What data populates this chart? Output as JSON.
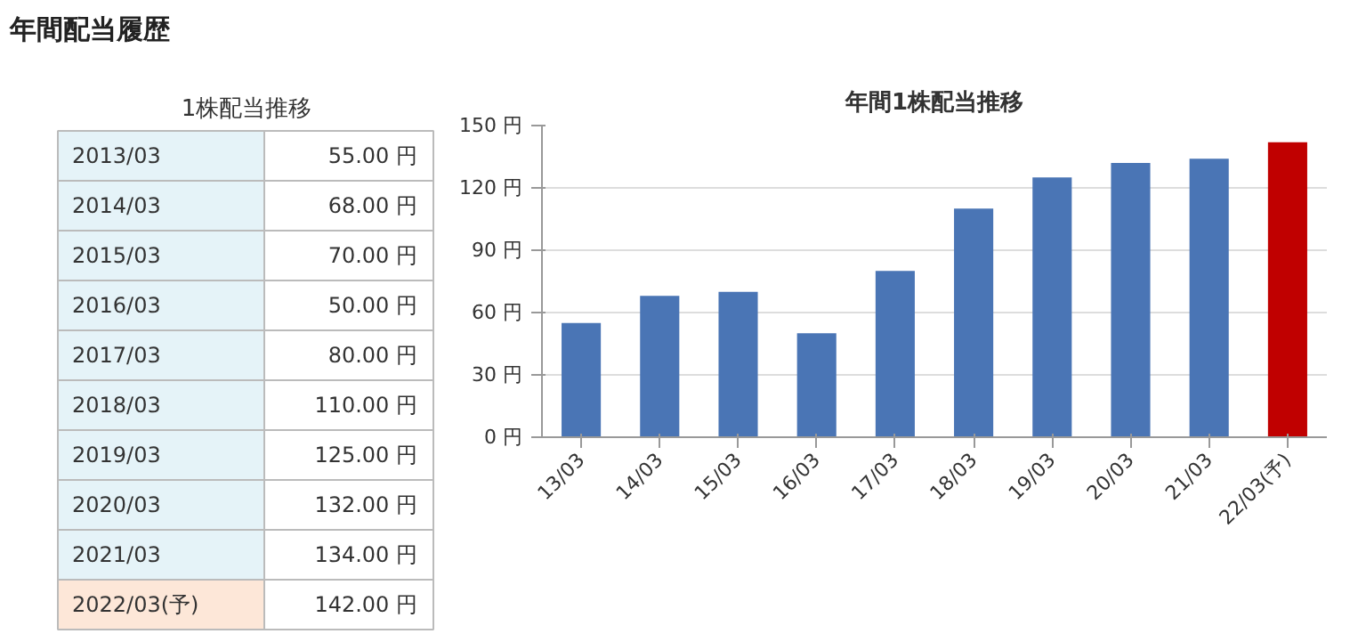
{
  "chart_data": [
    {
      "type": "other",
      "title": "1株配当推移",
      "annotations": [
        "年間配当履歴"
      ],
      "categories": [
        "2013/03",
        "2014/03",
        "2015/03",
        "2016/03",
        "2017/03",
        "2018/03",
        "2019/03",
        "2020/03",
        "2021/03",
        "2022/03(予)"
      ],
      "value_labels": [
        "55.00 円",
        "68.00 円",
        "70.00 円",
        "50.00 円",
        "80.00 円",
        "110.00 円",
        "125.00 円",
        "132.00 円",
        "134.00 円",
        "142.00 円"
      ],
      "colors": [
        "#e5f3f8",
        "#e5f3f8",
        "#e5f3f8",
        "#e5f3f8",
        "#e5f3f8",
        "#e5f3f8",
        "#e5f3f8",
        "#e5f3f8",
        "#e5f3f8",
        "#fde7d8"
      ]
    },
    {
      "type": "bar",
      "title": "年間1株配当推移",
      "categories": [
        "13/03",
        "14/03",
        "15/03",
        "16/03",
        "17/03",
        "18/03",
        "19/03",
        "20/03",
        "21/03",
        "22/03(予)"
      ],
      "values": [
        55,
        68,
        70,
        50,
        80,
        110,
        125,
        132,
        134,
        142
      ],
      "colors": [
        "#4a75b5",
        "#4a75b5",
        "#4a75b5",
        "#4a75b5",
        "#4a75b5",
        "#4a75b5",
        "#4a75b5",
        "#4a75b5",
        "#4a75b5",
        "#c00000"
      ],
      "ylim": [
        0,
        150
      ],
      "yticks": [
        {
          "value": 0,
          "label": "0 円"
        },
        {
          "value": 30,
          "label": "30 円"
        },
        {
          "value": 60,
          "label": "60 円"
        },
        {
          "value": 90,
          "label": "90 円"
        },
        {
          "value": 120,
          "label": "120 円"
        },
        {
          "value": 150,
          "label": "150 円"
        }
      ],
      "grid": "y"
    }
  ]
}
